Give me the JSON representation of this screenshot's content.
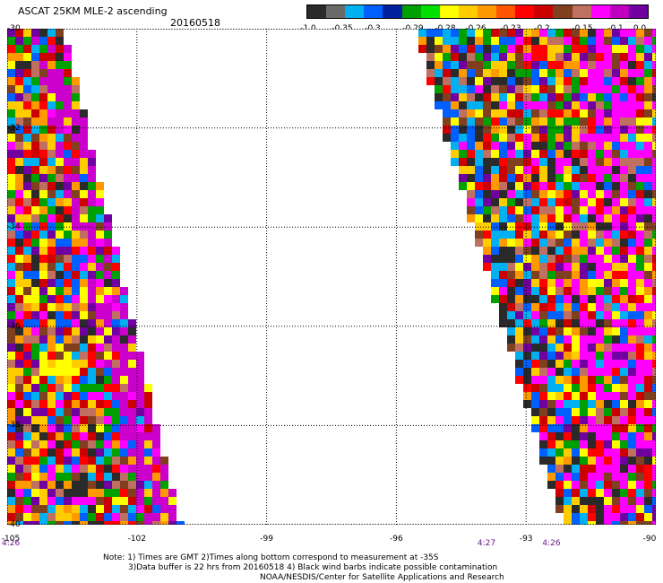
{
  "header": {
    "title": "ASCAT 25KM MLE-2 ascending",
    "date": "20160518"
  },
  "colorbar": {
    "colors": [
      "#2a2a2a",
      "#6a6a6a",
      "#00b0f0",
      "#0060ff",
      "#0020a0",
      "#00a000",
      "#00e000",
      "#ffff00",
      "#ffcc00",
      "#ff9900",
      "#ff5500",
      "#ff0000",
      "#cc0000",
      "#804020",
      "#c07060",
      "#ff00ff",
      "#c000c0",
      "#7000a0"
    ],
    "tick_labels": [
      "-1.0",
      "-0.35",
      "-0.3",
      "-0.29",
      "-0.28",
      "-0.26",
      "-0.23",
      "-0.2",
      "-0.15",
      "-0.1",
      "0.0"
    ]
  },
  "map": {
    "lon_range": [
      -105,
      -90
    ],
    "lat_range": [
      -40,
      -30
    ],
    "lon_ticks": [
      "-105",
      "-102",
      "-99",
      "-96",
      "-93",
      "-90"
    ],
    "lat_ticks": [
      "-30",
      "-32",
      "-34",
      "-36",
      "-38",
      "-40"
    ],
    "swath_palette": [
      "#ff0000",
      "#ff00ff",
      "#ffcc00",
      "#ff9900",
      "#cc0000",
      "#2a2a2a",
      "#00b0f0",
      "#0060ff",
      "#00a000",
      "#c07060",
      "#804020",
      "#7000a0",
      "#ffff00"
    ]
  },
  "time_labels": [
    {
      "text": "4:26",
      "lon": -105
    },
    {
      "text": "4:27",
      "lon": -94
    },
    {
      "text": "4:26",
      "lon": -92.5
    }
  ],
  "notes": {
    "line1": "Note: 1) Times are GMT 2)Times along bottom correspond to measurement at -35S",
    "line2": "3)Data buffer is 22 hrs from 20160518 4) Black wind barbs indicate possible contamination",
    "line3": "NOAA/NESDIS/Center for Satellite Applications and Research"
  }
}
